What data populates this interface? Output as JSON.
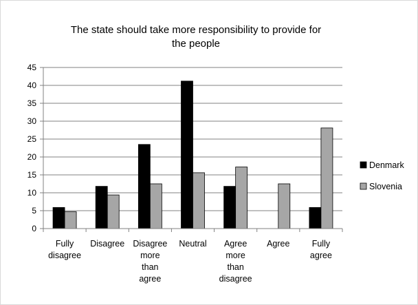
{
  "chart_data": {
    "type": "bar",
    "title_lines": [
      "The state should  take more responsibility  to provide for",
      "the people"
    ],
    "categories": [
      [
        "Fully",
        "disagree"
      ],
      [
        "Disagree"
      ],
      [
        "Disagree",
        "more",
        "than",
        "agree"
      ],
      [
        "Neutral"
      ],
      [
        "Agree",
        "more",
        "than",
        "disagree"
      ],
      [
        "Agree"
      ],
      [
        "Fully",
        "agree"
      ]
    ],
    "series": [
      {
        "name": "Denmark",
        "color": "#000000",
        "values": [
          5.9,
          11.8,
          23.5,
          41.2,
          11.8,
          0,
          5.9
        ]
      },
      {
        "name": "Slovenia",
        "color": "#a6a6a6",
        "values": [
          4.7,
          9.4,
          12.5,
          15.6,
          17.2,
          12.5,
          28.1
        ]
      }
    ],
    "ylim": [
      0,
      45
    ],
    "yticks": [
      0,
      5,
      10,
      15,
      20,
      25,
      30,
      35,
      40,
      45
    ],
    "grid": true,
    "legend_position": "right"
  }
}
